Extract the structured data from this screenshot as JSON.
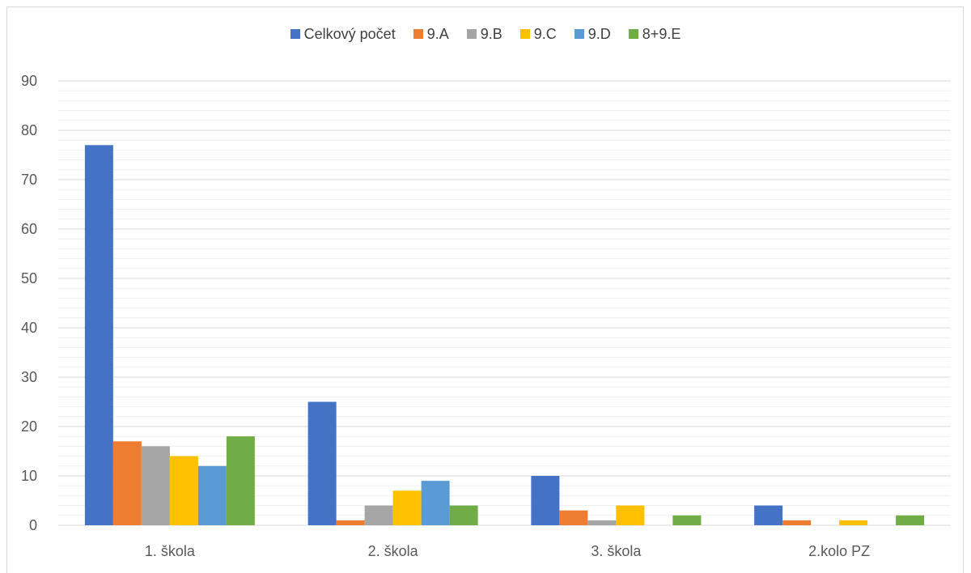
{
  "chart_data": {
    "type": "bar",
    "title": "",
    "xlabel": "",
    "ylabel": "",
    "ylim": [
      0,
      90
    ],
    "y_ticks": [
      0,
      10,
      20,
      30,
      40,
      50,
      60,
      70,
      80,
      90
    ],
    "y_tick_labels": [
      "0",
      "10",
      "20",
      "30",
      "40",
      "50",
      "60",
      "70",
      "80",
      "90"
    ],
    "grid": true,
    "minor_grid": true,
    "legend_position": "top-center",
    "categories": [
      "1. škola",
      "2. škola",
      "3. škola",
      "2.kolo PZ"
    ],
    "series": [
      {
        "name": "Celkový počet",
        "color": "#4472c4",
        "values": [
          77,
          25,
          10,
          4
        ]
      },
      {
        "name": "9.A",
        "color": "#ed7d31",
        "values": [
          17,
          1,
          3,
          1
        ]
      },
      {
        "name": "9.B",
        "color": "#a5a5a5",
        "values": [
          16,
          4,
          1,
          0
        ]
      },
      {
        "name": "9.C",
        "color": "#ffc000",
        "values": [
          14,
          7,
          4,
          1
        ]
      },
      {
        "name": "9.D",
        "color": "#5b9bd5",
        "values": [
          12,
          9,
          0,
          0
        ]
      },
      {
        "name": "8+9.E",
        "color": "#70ad47",
        "values": [
          18,
          4,
          2,
          2
        ]
      }
    ]
  }
}
